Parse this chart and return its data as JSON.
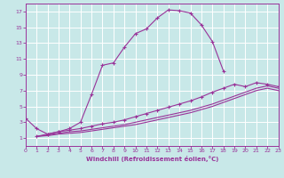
{
  "background_color": "#c8e8e8",
  "grid_color": "#ffffff",
  "line_color": "#993399",
  "xlabel": "Windchill (Refroidissement éolien,°C)",
  "xlim": [
    0,
    23
  ],
  "ylim": [
    0,
    18
  ],
  "xticks": [
    0,
    1,
    2,
    3,
    4,
    5,
    6,
    7,
    8,
    9,
    10,
    11,
    12,
    13,
    14,
    15,
    16,
    17,
    18,
    19,
    20,
    21,
    22,
    23
  ],
  "yticks": [
    1,
    3,
    5,
    7,
    9,
    11,
    13,
    15,
    17
  ],
  "series1_x": [
    0,
    1,
    2,
    3,
    4,
    5,
    6,
    7,
    8,
    9,
    10,
    11,
    12,
    13,
    14,
    15,
    16,
    17,
    18
  ],
  "series1_y": [
    3.5,
    2.2,
    1.5,
    1.8,
    2.2,
    3.0,
    6.5,
    10.2,
    10.5,
    12.5,
    14.2,
    14.8,
    16.2,
    17.2,
    17.1,
    16.8,
    15.3,
    13.2,
    9.5
  ],
  "series2_x": [
    1,
    2,
    3,
    4,
    5,
    6,
    7,
    8,
    9,
    10,
    11,
    12,
    13,
    14,
    15,
    16,
    17,
    18,
    19,
    20,
    21,
    22,
    23
  ],
  "series2_y": [
    1.2,
    1.5,
    1.8,
    2.0,
    2.2,
    2.5,
    2.8,
    3.0,
    3.3,
    3.7,
    4.1,
    4.5,
    4.9,
    5.3,
    5.7,
    6.2,
    6.8,
    7.3,
    7.8,
    7.5,
    8.0,
    7.8,
    7.5
  ],
  "series3_x": [
    1,
    2,
    3,
    4,
    5,
    6,
    7,
    8,
    9,
    10,
    11,
    12,
    13,
    14,
    15,
    16,
    17,
    18,
    19,
    20,
    21,
    22,
    23
  ],
  "series3_y": [
    1.2,
    1.4,
    1.6,
    1.8,
    1.9,
    2.1,
    2.3,
    2.5,
    2.7,
    3.0,
    3.3,
    3.6,
    3.9,
    4.2,
    4.5,
    4.9,
    5.3,
    5.8,
    6.3,
    6.8,
    7.3,
    7.6,
    7.3
  ],
  "series4_x": [
    1,
    2,
    3,
    4,
    5,
    6,
    7,
    8,
    9,
    10,
    11,
    12,
    13,
    14,
    15,
    16,
    17,
    18,
    19,
    20,
    21,
    22,
    23
  ],
  "series4_y": [
    1.2,
    1.3,
    1.5,
    1.6,
    1.7,
    1.9,
    2.1,
    2.3,
    2.5,
    2.7,
    3.0,
    3.3,
    3.6,
    3.9,
    4.2,
    4.6,
    5.0,
    5.5,
    6.0,
    6.5,
    7.0,
    7.3,
    7.0
  ]
}
